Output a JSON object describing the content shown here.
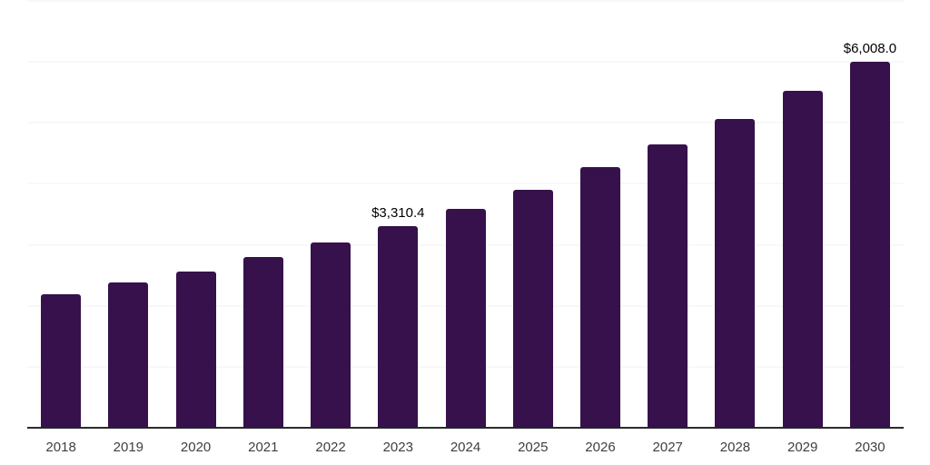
{
  "chart_data": {
    "type": "bar",
    "title": "",
    "xlabel": "",
    "ylabel": "",
    "categories": [
      "2018",
      "2019",
      "2020",
      "2021",
      "2022",
      "2023",
      "2024",
      "2025",
      "2026",
      "2027",
      "2028",
      "2029",
      "2030"
    ],
    "values": [
      2190,
      2380,
      2560,
      2795,
      3035,
      3310.4,
      3590,
      3900,
      4270,
      4645,
      5060,
      5520,
      6008.0
    ],
    "data_labels": [
      "",
      "",
      "",
      "",
      "",
      "$3,310.4",
      "",
      "",
      "",
      "",
      "",
      "",
      "$6,008.0"
    ],
    "ylim": [
      0,
      7000
    ],
    "gridline_step": 1000,
    "grid": "horizontal",
    "legend": "none",
    "y_tick_labels_visible": false
  },
  "colors": {
    "bar": "#36114C",
    "gridline": "#F0F0F0",
    "axis_line": "#2B2B2B",
    "data_label": "#000000",
    "tick_label": "#3F3F3F",
    "background": "#FFFFFF"
  }
}
